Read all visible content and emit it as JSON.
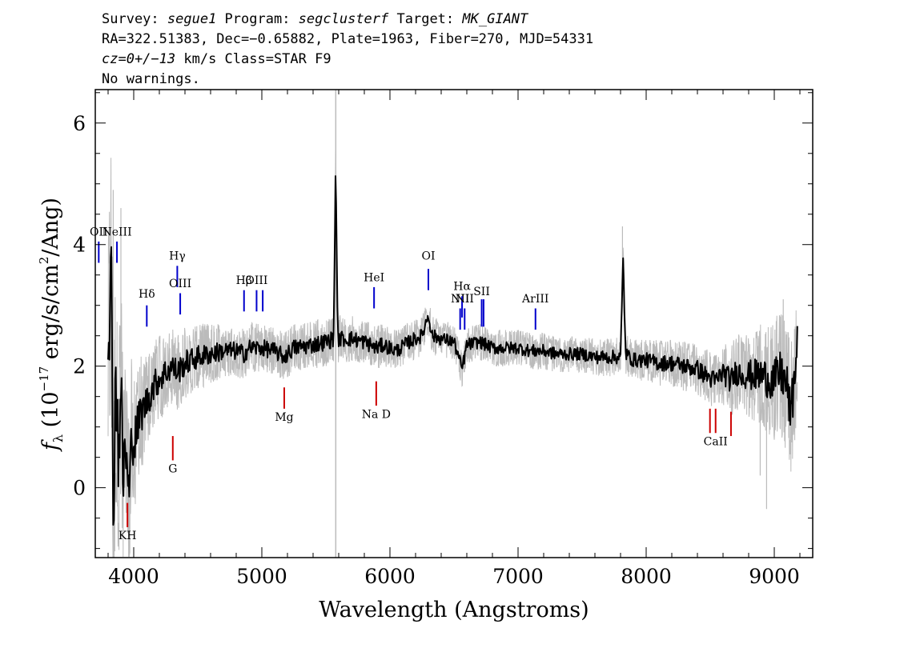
{
  "header": {
    "line1": {
      "survey_label": "Survey: ",
      "survey": "segue1",
      "program_label": " Program: ",
      "program": "segclusterf",
      "target_label": " Target: ",
      "target": "MK_GIANT"
    },
    "line2": "RA=322.51383, Dec=−0.65882, Plate=1963, Fiber=270, MJD=54331",
    "line3": {
      "cz": "cz=0+/−13",
      "rest": " km/s Class=STAR F9"
    },
    "line4": "No warnings."
  },
  "chart_data": {
    "type": "line",
    "xlabel": "Wavelength (Angstroms)",
    "ylabel": "fλ (10⁻¹⁷ erg/s/cm²/Ang)",
    "ylabel_parts": {
      "f": "f",
      "sub": "λ",
      "open": " (10",
      "exp": "−17",
      "unit": " erg/s/cm",
      "sq": "2",
      "close": "/Ang)"
    },
    "xlim": [
      3700,
      9300
    ],
    "ylim": [
      -1.15,
      6.55
    ],
    "x_ticks": [
      4000,
      5000,
      6000,
      7000,
      8000,
      9000
    ],
    "x_tick_labels": [
      "4000",
      "5000",
      "6000",
      "7000",
      "8000",
      "9000"
    ],
    "y_ticks": [
      0,
      2,
      4,
      6
    ],
    "y_tick_labels": [
      "0",
      "2",
      "4",
      "6"
    ],
    "grid": false,
    "sky_line_marker_x": 5577,
    "series": [
      {
        "role": "flux_smoothed",
        "color": "#000000",
        "points": [
          [
            3800,
            2.4
          ],
          [
            3825,
            3.5
          ],
          [
            3840,
            -0.3
          ],
          [
            3860,
            2.0
          ],
          [
            3880,
            0.6
          ],
          [
            3900,
            1.6
          ],
          [
            3920,
            0.0
          ],
          [
            3933,
            0.9
          ],
          [
            3950,
            0.1
          ],
          [
            3968,
            -0.1
          ],
          [
            3985,
            1.0
          ],
          [
            4000,
            0.7
          ],
          [
            4050,
            1.2
          ],
          [
            4100,
            1.4
          ],
          [
            4150,
            1.65
          ],
          [
            4200,
            1.8
          ],
          [
            4250,
            1.9
          ],
          [
            4300,
            2.0
          ],
          [
            4340,
            1.9
          ],
          [
            4400,
            2.05
          ],
          [
            4450,
            2.1
          ],
          [
            4500,
            2.15
          ],
          [
            4600,
            2.2
          ],
          [
            4700,
            2.25
          ],
          [
            4800,
            2.25
          ],
          [
            4861,
            2.2
          ],
          [
            4900,
            2.3
          ],
          [
            5000,
            2.3
          ],
          [
            5100,
            2.25
          ],
          [
            5175,
            2.15
          ],
          [
            5250,
            2.3
          ],
          [
            5400,
            2.35
          ],
          [
            5500,
            2.4
          ],
          [
            5560,
            2.45
          ],
          [
            5577,
            5.4
          ],
          [
            5592,
            2.45
          ],
          [
            5700,
            2.45
          ],
          [
            5800,
            2.4
          ],
          [
            5893,
            2.3
          ],
          [
            5950,
            2.35
          ],
          [
            6050,
            2.25
          ],
          [
            6150,
            2.4
          ],
          [
            6250,
            2.5
          ],
          [
            6300,
            2.85
          ],
          [
            6330,
            2.5
          ],
          [
            6400,
            2.45
          ],
          [
            6500,
            2.4
          ],
          [
            6563,
            1.95
          ],
          [
            6600,
            2.35
          ],
          [
            6700,
            2.4
          ],
          [
            6800,
            2.3
          ],
          [
            6900,
            2.3
          ],
          [
            7000,
            2.3
          ],
          [
            7100,
            2.25
          ],
          [
            7200,
            2.25
          ],
          [
            7300,
            2.2
          ],
          [
            7400,
            2.2
          ],
          [
            7500,
            2.2
          ],
          [
            7600,
            2.15
          ],
          [
            7700,
            2.15
          ],
          [
            7800,
            2.15
          ],
          [
            7820,
            3.75
          ],
          [
            7840,
            2.2
          ],
          [
            7900,
            2.1
          ],
          [
            8000,
            2.1
          ],
          [
            8100,
            2.05
          ],
          [
            8200,
            2.05
          ],
          [
            8300,
            2.0
          ],
          [
            8400,
            1.95
          ],
          [
            8498,
            1.8
          ],
          [
            8542,
            1.75
          ],
          [
            8600,
            1.9
          ],
          [
            8662,
            1.75
          ],
          [
            8700,
            1.9
          ],
          [
            8800,
            1.85
          ],
          [
            8900,
            1.85
          ],
          [
            9000,
            1.75
          ],
          [
            9050,
            1.9
          ],
          [
            9100,
            1.65
          ],
          [
            9130,
            1.15
          ],
          [
            9160,
            1.9
          ],
          [
            9180,
            2.3
          ]
        ]
      }
    ],
    "error_band": {
      "role": "flux_noise_envelope",
      "color": "#bbbbbb",
      "noise_points": [
        [
          3800,
          2.0
        ],
        [
          3850,
          2.5
        ],
        [
          3900,
          2.0
        ],
        [
          3950,
          1.5
        ],
        [
          4000,
          1.2
        ],
        [
          4100,
          0.8
        ],
        [
          4200,
          0.7
        ],
        [
          4400,
          0.6
        ],
        [
          4700,
          0.45
        ],
        [
          5000,
          0.4
        ],
        [
          5500,
          0.4
        ],
        [
          6000,
          0.35
        ],
        [
          6500,
          0.3
        ],
        [
          7000,
          0.3
        ],
        [
          7500,
          0.3
        ],
        [
          8000,
          0.35
        ],
        [
          8500,
          0.45
        ],
        [
          8800,
          0.7
        ],
        [
          9000,
          1.0
        ],
        [
          9200,
          1.2
        ]
      ],
      "spikes": [
        [
          3840,
          4.9
        ],
        [
          3900,
          4.6
        ],
        [
          7815,
          4.3
        ],
        [
          8890,
          0.2
        ],
        [
          8940,
          -0.35
        ],
        [
          9070,
          3.1
        ]
      ]
    },
    "line_labels": [
      {
        "name": "OII",
        "display": "OII",
        "x": 3727,
        "y_top": 4.05,
        "y_bottom": 3.7,
        "label_y": 4.15,
        "color": "#0000cc"
      },
      {
        "name": "NeIII",
        "display": "NeIII",
        "x": 3869,
        "y_top": 4.05,
        "y_bottom": 3.7,
        "label_y": 4.15,
        "color": "#0000cc"
      },
      {
        "name": "H-delta",
        "display": "Hδ",
        "x": 4102,
        "y_top": 3.0,
        "y_bottom": 2.65,
        "label_y": 3.13,
        "color": "#0000cc"
      },
      {
        "name": "H-gamma",
        "display": "Hγ",
        "x": 4340,
        "y_top": 3.65,
        "y_bottom": 3.3,
        "label_y": 3.75,
        "color": "#0000cc"
      },
      {
        "name": "OIII-4363",
        "display": "OIII",
        "x": 4363,
        "y_top": 3.2,
        "y_bottom": 2.85,
        "label_y": 3.3,
        "color": "#0000cc"
      },
      {
        "name": "H-beta",
        "display": "Hβ",
        "x": 4861,
        "y_top": 3.25,
        "y_bottom": 2.9,
        "label_y": 3.35,
        "color": "#0000cc"
      },
      {
        "name": "OIII-4959",
        "display": "OIII",
        "x": 4959,
        "y_top": 3.25,
        "y_bottom": 2.9,
        "label_y": 3.35,
        "color": "#0000cc"
      },
      {
        "name": "OIII-5007",
        "display": "",
        "x": 5007,
        "y_top": 3.25,
        "y_bottom": 2.9,
        "label_y": 3.35,
        "color": "#0000cc"
      },
      {
        "name": "HeI",
        "display": "HeI",
        "x": 5876,
        "y_top": 3.3,
        "y_bottom": 2.95,
        "label_y": 3.4,
        "color": "#0000cc"
      },
      {
        "name": "OI",
        "display": "OI",
        "x": 6300,
        "y_top": 3.6,
        "y_bottom": 3.25,
        "label_y": 3.75,
        "color": "#0000cc"
      },
      {
        "name": "NII-6548",
        "display": "NII",
        "x": 6548,
        "y_top": 2.95,
        "y_bottom": 2.6,
        "label_y": 3.05,
        "color": "#0000cc"
      },
      {
        "name": "H-alpha",
        "display": "Hα",
        "x": 6563,
        "y_top": 3.15,
        "y_bottom": 2.8,
        "label_y": 3.25,
        "color": "#0000cc"
      },
      {
        "name": "NII-6583",
        "display": "NII",
        "x": 6583,
        "y_top": 2.95,
        "y_bottom": 2.6,
        "label_y": 3.05,
        "color": "#0000cc"
      },
      {
        "name": "SII-6716",
        "display": "SII",
        "x": 6716,
        "y_top": 3.1,
        "y_bottom": 2.65,
        "label_y": 3.17,
        "color": "#0000cc"
      },
      {
        "name": "SII-6731",
        "display": "",
        "x": 6731,
        "y_top": 3.1,
        "y_bottom": 2.65,
        "label_y": 3.17,
        "color": "#0000cc"
      },
      {
        "name": "ArIII",
        "display": "ArIII",
        "x": 7136,
        "y_top": 2.95,
        "y_bottom": 2.6,
        "label_y": 3.05,
        "color": "#0000cc"
      },
      {
        "name": "K-H",
        "display": "KH",
        "x": 3951,
        "y_top": -0.25,
        "y_bottom": -0.65,
        "label_y": -0.85,
        "color": "#cc0000"
      },
      {
        "name": "G-band",
        "display": "G",
        "x": 4305,
        "y_top": 0.85,
        "y_bottom": 0.45,
        "label_y": 0.25,
        "color": "#cc0000"
      },
      {
        "name": "Mg",
        "display": "Mg",
        "x": 5175,
        "y_top": 1.65,
        "y_bottom": 1.3,
        "label_y": 1.1,
        "color": "#cc0000"
      },
      {
        "name": "Na-D",
        "display": "Na  D",
        "x": 5893,
        "y_top": 1.75,
        "y_bottom": 1.35,
        "label_y": 1.15,
        "color": "#cc0000"
      },
      {
        "name": "CaII-8498",
        "display": "",
        "x": 8498,
        "y_top": 1.3,
        "y_bottom": 0.9,
        "label_y": 0.7,
        "color": "#cc0000"
      },
      {
        "name": "CaII-8542",
        "display": "CaII",
        "x": 8542,
        "y_top": 1.3,
        "y_bottom": 0.9,
        "label_y": 0.7,
        "color": "#cc0000"
      },
      {
        "name": "CaII-8662",
        "display": "",
        "x": 8662,
        "y_top": 1.25,
        "y_bottom": 0.85,
        "label_y": 0.7,
        "color": "#cc0000"
      }
    ]
  }
}
